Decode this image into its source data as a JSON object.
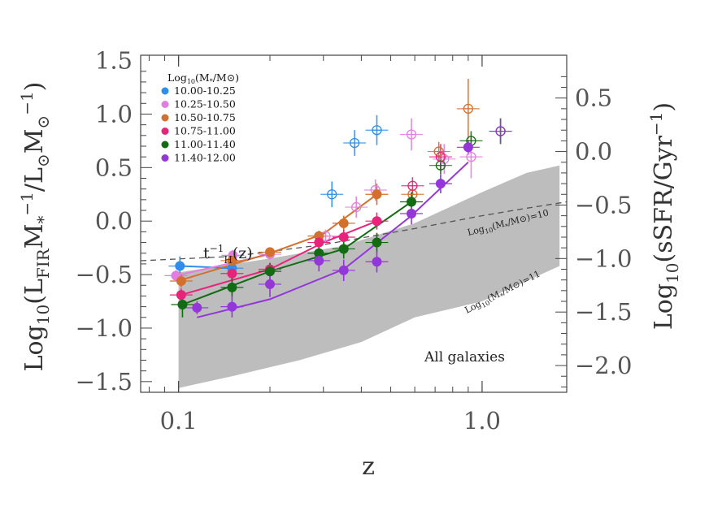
{
  "chart_data": {
    "type": "scatter",
    "xlabel": "z",
    "ylabel_left": "Log10(LFIR M*^-1 / L⊙ M⊙^-1)",
    "ylabel_right": "Log10(sSFR/Gyr^-1)",
    "x_scale": "log",
    "xlim": [
      0.075,
      1.9
    ],
    "ylim": [
      -1.6,
      1.55
    ],
    "ylim_right": [
      -2.25,
      0.9
    ],
    "x_ticks": [
      {
        "value": 0.1,
        "label": "0.1"
      },
      {
        "value": 1.0,
        "label": "1.0"
      }
    ],
    "y_ticks": [
      {
        "value": 1.5,
        "label": "1.5"
      },
      {
        "value": 1.0,
        "label": "1.0"
      },
      {
        "value": 0.5,
        "label": "0.5"
      },
      {
        "value": 0.0,
        "label": "0.0"
      },
      {
        "value": -0.5,
        "label": "−0.5"
      },
      {
        "value": -1.0,
        "label": "−1.0"
      },
      {
        "value": -1.5,
        "label": "−1.5"
      }
    ],
    "y_ticks_right": [
      {
        "value": 0.5,
        "label": "0.5"
      },
      {
        "value": 0.0,
        "label": "0.0"
      },
      {
        "value": -0.5,
        "label": "−0.5"
      },
      {
        "value": -1.0,
        "label": "−1.0"
      },
      {
        "value": -1.5,
        "label": "−1.5"
      },
      {
        "value": -2.0,
        "label": "−2.0"
      }
    ],
    "legend": {
      "title_main": "Log",
      "title_sub": "10",
      "title_rest": "(M",
      "title_star": "*",
      "title_end": "/M⊙)",
      "placement": "top-left",
      "grid": false
    },
    "series": [
      {
        "name": "10.00-10.25",
        "color": "#2e8ee8",
        "filled": [
          {
            "x": 0.101,
            "y": -0.42,
            "yerr": 0.09
          },
          {
            "x": 0.15,
            "y": -0.44,
            "yerr": 0.05
          }
        ],
        "fit": [
          [
            0.101,
            -0.42
          ],
          [
            0.15,
            -0.44
          ]
        ],
        "open": [
          {
            "x": 0.32,
            "y": 0.25,
            "yerr": 0.12
          },
          {
            "x": 0.38,
            "y": 0.73,
            "yerr": 0.12
          },
          {
            "x": 0.45,
            "y": 0.85,
            "yerr": 0.14
          }
        ]
      },
      {
        "name": "10.25-10.50",
        "color": "#e17fe0",
        "filled": [
          {
            "x": 0.098,
            "y": -0.51,
            "yerr": 0.05
          },
          {
            "x": 0.151,
            "y": -0.32,
            "yerr": 0.05
          },
          {
            "x": 0.2,
            "y": -0.31,
            "yerr": 0.05
          }
        ],
        "fit": [
          [
            0.098,
            -0.51
          ],
          [
            0.2,
            -0.31
          ]
        ],
        "open": [
          {
            "x": 0.305,
            "y": -0.14,
            "yerr": 0.06
          },
          {
            "x": 0.385,
            "y": 0.13,
            "yerr": 0.1
          },
          {
            "x": 0.445,
            "y": 0.29,
            "yerr": 0.1
          },
          {
            "x": 0.585,
            "y": 0.81,
            "yerr": 0.15
          },
          {
            "x": 0.75,
            "y": 0.58,
            "yerr": 0.14
          },
          {
            "x": 0.92,
            "y": 0.6,
            "yerr": 0.2
          }
        ]
      },
      {
        "name": "10.50-10.75",
        "color": "#d2712e",
        "filled": [
          {
            "x": 0.102,
            "y": -0.56,
            "yerr": 0.06
          },
          {
            "x": 0.15,
            "y": -0.37,
            "yerr": 0.05
          },
          {
            "x": 0.2,
            "y": -0.29,
            "yerr": 0.04
          },
          {
            "x": 0.29,
            "y": -0.14,
            "yerr": 0.05
          },
          {
            "x": 0.35,
            "y": -0.02,
            "yerr": 0.07
          },
          {
            "x": 0.45,
            "y": 0.25,
            "yerr": 0.1
          }
        ],
        "fit": [
          [
            0.102,
            -0.55
          ],
          [
            0.2,
            -0.3
          ],
          [
            0.3,
            -0.12
          ],
          [
            0.45,
            0.25
          ]
        ],
        "open": [
          {
            "x": 0.59,
            "y": 0.25,
            "yerr": 0.06
          },
          {
            "x": 0.72,
            "y": 0.65,
            "yerr": 0.09
          },
          {
            "x": 0.9,
            "y": 1.05,
            "yerr": 0.28
          }
        ]
      },
      {
        "name": "10.75-11.00",
        "color": "#e8247a",
        "filled": [
          {
            "x": 0.102,
            "y": -0.69,
            "yerr": 0.06
          },
          {
            "x": 0.15,
            "y": -0.49,
            "yerr": 0.06
          },
          {
            "x": 0.2,
            "y": -0.45,
            "yerr": 0.05
          },
          {
            "x": 0.29,
            "y": -0.2,
            "yerr": 0.06
          },
          {
            "x": 0.35,
            "y": -0.15,
            "yerr": 0.07
          },
          {
            "x": 0.45,
            "y": 0.0,
            "yerr": 0.08
          }
        ],
        "fit": [
          [
            0.102,
            -0.69
          ],
          [
            0.2,
            -0.45
          ],
          [
            0.3,
            -0.2
          ],
          [
            0.45,
            0.0
          ]
        ],
        "open": [
          {
            "x": 0.59,
            "y": 0.33,
            "yerr": 0.08
          },
          {
            "x": 0.73,
            "y": 0.6,
            "yerr": 0.12
          }
        ]
      },
      {
        "name": "11.00-11.40",
        "color": "#136b14",
        "filled": [
          {
            "x": 0.103,
            "y": -0.78,
            "yerr": 0.12
          },
          {
            "x": 0.15,
            "y": -0.62,
            "yerr": 0.09
          },
          {
            "x": 0.2,
            "y": -0.47,
            "yerr": 0.08
          },
          {
            "x": 0.29,
            "y": -0.3,
            "yerr": 0.07
          },
          {
            "x": 0.35,
            "y": -0.26,
            "yerr": 0.09
          },
          {
            "x": 0.45,
            "y": -0.2,
            "yerr": 0.09
          },
          {
            "x": 0.585,
            "y": 0.18,
            "yerr": 0.09
          }
        ],
        "fit": [
          [
            0.103,
            -0.78
          ],
          [
            0.2,
            -0.47
          ],
          [
            0.35,
            -0.26
          ],
          [
            0.585,
            0.18
          ]
        ],
        "open": [
          {
            "x": 0.73,
            "y": 0.52,
            "yerr": 0.08
          },
          {
            "x": 0.92,
            "y": 0.75,
            "yerr": 0.09
          },
          {
            "x": 1.15,
            "y": 0.84,
            "yerr": 0.12
          }
        ]
      },
      {
        "name": "11.40-12.00",
        "color": "#9437d8",
        "filled": [
          {
            "x": 0.115,
            "y": -0.81,
            "yerr": 0.06
          },
          {
            "x": 0.15,
            "y": -0.8,
            "yerr": 0.1
          },
          {
            "x": 0.2,
            "y": -0.59,
            "yerr": 0.12
          },
          {
            "x": 0.29,
            "y": -0.37,
            "yerr": 0.1
          },
          {
            "x": 0.35,
            "y": -0.46,
            "yerr": 0.1
          },
          {
            "x": 0.45,
            "y": -0.38,
            "yerr": 0.1
          },
          {
            "x": 0.585,
            "y": 0.07,
            "yerr": 0.1
          },
          {
            "x": 0.73,
            "y": 0.35,
            "yerr": 0.09
          },
          {
            "x": 0.9,
            "y": 0.69,
            "yerr": 0.07
          }
        ],
        "fit": [
          [
            0.115,
            -0.9
          ],
          [
            0.2,
            -0.73
          ],
          [
            0.35,
            -0.45
          ],
          [
            0.585,
            0.05
          ],
          [
            0.9,
            0.55
          ]
        ],
        "open": [
          {
            "x": 1.15,
            "y": 0.84,
            "yerr": 0.12
          }
        ]
      }
    ],
    "band": {
      "name": "All galaxies",
      "upper": [
        [
          0.1,
          -0.48
        ],
        [
          0.2,
          -0.35
        ],
        [
          0.35,
          -0.23
        ],
        [
          0.6,
          -0.02
        ],
        [
          1.0,
          0.27
        ],
        [
          1.4,
          0.45
        ],
        [
          1.8,
          0.52
        ]
      ],
      "lower": [
        [
          1.8,
          -0.42
        ],
        [
          1.4,
          -0.56
        ],
        [
          1.0,
          -0.75
        ],
        [
          0.6,
          -0.9
        ],
        [
          0.4,
          -1.13
        ],
        [
          0.25,
          -1.3
        ],
        [
          0.15,
          -1.45
        ],
        [
          0.1,
          -1.56
        ]
      ]
    },
    "reference_lines": [
      {
        "label_main": "t",
        "label_sup": "−1",
        "label_sub": "H",
        "label_end": "(z)",
        "style": "dashed",
        "points": [
          [
            0.075,
            -0.37
          ],
          [
            0.15,
            -0.33
          ],
          [
            0.3,
            -0.22
          ],
          [
            0.6,
            -0.07
          ],
          [
            1.0,
            0.05
          ],
          [
            1.4,
            0.12
          ],
          [
            1.9,
            0.18
          ]
        ]
      }
    ],
    "annotations": [
      {
        "id": "m10",
        "main": "Log",
        "sub": "10",
        "mid": "(M",
        "star": "*",
        "end": "/M⊙)=10"
      },
      {
        "id": "m11",
        "main": "Log",
        "sub": "10",
        "mid": "(M",
        "star": "*",
        "end": "/M⊙)=11"
      },
      {
        "id": "allgal",
        "text": "All galaxies"
      }
    ]
  }
}
